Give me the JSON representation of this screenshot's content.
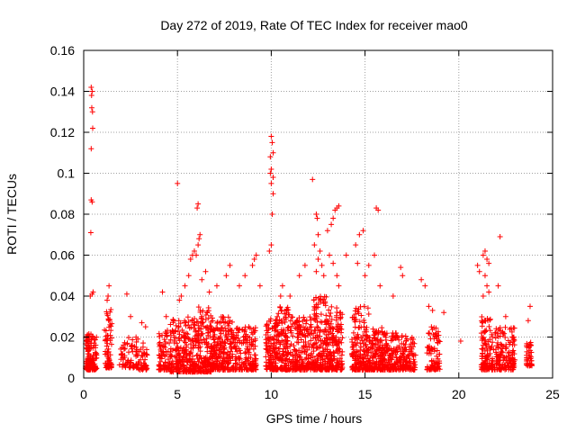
{
  "chart_data": {
    "type": "scatter",
    "title": "Day 272 of 2019, Rate Of TEC Index for receiver mao0",
    "xlabel": "GPS time / hours",
    "ylabel": "ROTI / TECUs",
    "xlim": [
      0,
      25
    ],
    "ylim": [
      0,
      0.16
    ],
    "x_ticks": [
      0,
      5,
      10,
      15,
      20,
      25
    ],
    "x_tick_labels": [
      "0",
      "5",
      "10",
      "15",
      "20",
      "25"
    ],
    "y_ticks": [
      0,
      0.02,
      0.04,
      0.06,
      0.08,
      0.1,
      0.12,
      0.14,
      0.16
    ],
    "y_tick_labels": [
      "0",
      "0.02",
      "0.04",
      "0.06",
      "0.08",
      "0.1",
      "0.12",
      "0.14",
      "0.16"
    ],
    "grid": true,
    "marker": "plus",
    "marker_color": "#ff0000",
    "series": [
      {
        "name": "ROTI",
        "clusters": [
          {
            "x": [
              0.1,
              0.7
            ],
            "y": [
              0.004,
              0.022
            ],
            "n": 140
          },
          {
            "x": [
              1.1,
              1.5
            ],
            "y": [
              0.005,
              0.035
            ],
            "n": 70
          },
          {
            "x": [
              1.9,
              2.9
            ],
            "y": [
              0.005,
              0.02
            ],
            "n": 70
          },
          {
            "x": [
              2.9,
              3.4
            ],
            "y": [
              0.004,
              0.018
            ],
            "n": 40
          },
          {
            "x": [
              4.0,
              4.6
            ],
            "y": [
              0.004,
              0.025
            ],
            "n": 80
          },
          {
            "x": [
              4.6,
              5.4
            ],
            "y": [
              0.003,
              0.03
            ],
            "n": 130
          },
          {
            "x": [
              5.4,
              6.0
            ],
            "y": [
              0.003,
              0.03
            ],
            "n": 120
          },
          {
            "x": [
              6.0,
              6.8
            ],
            "y": [
              0.003,
              0.035
            ],
            "n": 160
          },
          {
            "x": [
              6.8,
              8.0
            ],
            "y": [
              0.004,
              0.03
            ],
            "n": 220
          },
          {
            "x": [
              8.0,
              9.2
            ],
            "y": [
              0.004,
              0.025
            ],
            "n": 160
          },
          {
            "x": [
              9.7,
              10.3
            ],
            "y": [
              0.004,
              0.03
            ],
            "n": 130
          },
          {
            "x": [
              10.3,
              11.2
            ],
            "y": [
              0.004,
              0.035
            ],
            "n": 160
          },
          {
            "x": [
              11.2,
              12.2
            ],
            "y": [
              0.004,
              0.03
            ],
            "n": 170
          },
          {
            "x": [
              12.2,
              13.0
            ],
            "y": [
              0.004,
              0.04
            ],
            "n": 170
          },
          {
            "x": [
              13.0,
              13.8
            ],
            "y": [
              0.004,
              0.035
            ],
            "n": 170
          },
          {
            "x": [
              14.3,
              15.2
            ],
            "y": [
              0.004,
              0.035
            ],
            "n": 180
          },
          {
            "x": [
              15.2,
              16.0
            ],
            "y": [
              0.004,
              0.025
            ],
            "n": 150
          },
          {
            "x": [
              16.0,
              17.2
            ],
            "y": [
              0.004,
              0.022
            ],
            "n": 170
          },
          {
            "x": [
              17.2,
              17.7
            ],
            "y": [
              0.004,
              0.02
            ],
            "n": 60
          },
          {
            "x": [
              18.3,
              19.0
            ],
            "y": [
              0.004,
              0.025
            ],
            "n": 90
          },
          {
            "x": [
              21.2,
              21.8
            ],
            "y": [
              0.004,
              0.03
            ],
            "n": 110
          },
          {
            "x": [
              21.8,
              23.0
            ],
            "y": [
              0.004,
              0.025
            ],
            "n": 150
          },
          {
            "x": [
              23.6,
              23.9
            ],
            "y": [
              0.006,
              0.018
            ],
            "n": 40
          }
        ],
        "points": [
          [
            0.4,
            0.142
          ],
          [
            0.45,
            0.14
          ],
          [
            0.42,
            0.138
          ],
          [
            0.43,
            0.132
          ],
          [
            0.47,
            0.13
          ],
          [
            0.48,
            0.122
          ],
          [
            0.4,
            0.112
          ],
          [
            0.4,
            0.087
          ],
          [
            0.45,
            0.086
          ],
          [
            0.38,
            0.071
          ],
          [
            0.45,
            0.041
          ],
          [
            0.5,
            0.042
          ],
          [
            0.35,
            0.04
          ],
          [
            1.35,
            0.045
          ],
          [
            1.3,
            0.04
          ],
          [
            1.25,
            0.038
          ],
          [
            2.3,
            0.041
          ],
          [
            2.5,
            0.03
          ],
          [
            3.1,
            0.027
          ],
          [
            3.3,
            0.025
          ],
          [
            4.2,
            0.042
          ],
          [
            4.4,
            0.03
          ],
          [
            5.0,
            0.095
          ],
          [
            5.1,
            0.038
          ],
          [
            5.2,
            0.04
          ],
          [
            5.4,
            0.045
          ],
          [
            5.6,
            0.05
          ],
          [
            5.7,
            0.058
          ],
          [
            5.8,
            0.06
          ],
          [
            5.9,
            0.062
          ],
          [
            6.0,
            0.06
          ],
          [
            6.1,
            0.065
          ],
          [
            6.15,
            0.068
          ],
          [
            6.2,
            0.07
          ],
          [
            6.1,
            0.085
          ],
          [
            6.05,
            0.083
          ],
          [
            6.3,
            0.048
          ],
          [
            6.5,
            0.052
          ],
          [
            6.7,
            0.042
          ],
          [
            7.1,
            0.045
          ],
          [
            7.6,
            0.05
          ],
          [
            7.8,
            0.055
          ],
          [
            8.3,
            0.045
          ],
          [
            8.6,
            0.05
          ],
          [
            9.0,
            0.055
          ],
          [
            9.1,
            0.058
          ],
          [
            9.2,
            0.06
          ],
          [
            9.4,
            0.045
          ],
          [
            9.9,
            0.062
          ],
          [
            10.0,
            0.065
          ],
          [
            10.05,
            0.08
          ],
          [
            10.1,
            0.09
          ],
          [
            9.95,
            0.1
          ],
          [
            10.0,
            0.102
          ],
          [
            10.1,
            0.11
          ],
          [
            10.05,
            0.115
          ],
          [
            10.0,
            0.118
          ],
          [
            9.95,
            0.108
          ],
          [
            10.1,
            0.098
          ],
          [
            10.0,
            0.095
          ],
          [
            10.5,
            0.04
          ],
          [
            10.6,
            0.045
          ],
          [
            11.0,
            0.04
          ],
          [
            11.5,
            0.05
          ],
          [
            11.8,
            0.055
          ],
          [
            12.2,
            0.097
          ],
          [
            12.4,
            0.08
          ],
          [
            12.45,
            0.078
          ],
          [
            12.5,
            0.07
          ],
          [
            12.3,
            0.065
          ],
          [
            12.6,
            0.062
          ],
          [
            12.5,
            0.058
          ],
          [
            12.7,
            0.055
          ],
          [
            12.8,
            0.05
          ],
          [
            12.4,
            0.052
          ],
          [
            13.0,
            0.072
          ],
          [
            13.2,
            0.075
          ],
          [
            13.3,
            0.078
          ],
          [
            13.4,
            0.082
          ],
          [
            13.5,
            0.083
          ],
          [
            13.6,
            0.084
          ],
          [
            13.1,
            0.06
          ],
          [
            13.3,
            0.056
          ],
          [
            13.5,
            0.05
          ],
          [
            13.6,
            0.045
          ],
          [
            14.0,
            0.06
          ],
          [
            14.5,
            0.065
          ],
          [
            14.7,
            0.07
          ],
          [
            14.9,
            0.072
          ],
          [
            14.6,
            0.056
          ],
          [
            15.0,
            0.05
          ],
          [
            15.2,
            0.055
          ],
          [
            15.6,
            0.083
          ],
          [
            15.7,
            0.082
          ],
          [
            15.5,
            0.06
          ],
          [
            15.8,
            0.045
          ],
          [
            16.5,
            0.04
          ],
          [
            16.9,
            0.054
          ],
          [
            17.0,
            0.05
          ],
          [
            18.0,
            0.048
          ],
          [
            18.2,
            0.045
          ],
          [
            18.4,
            0.035
          ],
          [
            18.6,
            0.033
          ],
          [
            19.2,
            0.032
          ],
          [
            21.0,
            0.055
          ],
          [
            21.1,
            0.052
          ],
          [
            21.3,
            0.06
          ],
          [
            21.4,
            0.062
          ],
          [
            21.5,
            0.058
          ],
          [
            21.6,
            0.056
          ],
          [
            21.4,
            0.05
          ],
          [
            21.5,
            0.045
          ],
          [
            21.3,
            0.04
          ],
          [
            21.6,
            0.042
          ],
          [
            22.2,
            0.069
          ],
          [
            22.1,
            0.045
          ],
          [
            22.5,
            0.03
          ],
          [
            23.8,
            0.035
          ],
          [
            23.7,
            0.028
          ],
          [
            20.1,
            0.018
          ]
        ]
      }
    ]
  }
}
